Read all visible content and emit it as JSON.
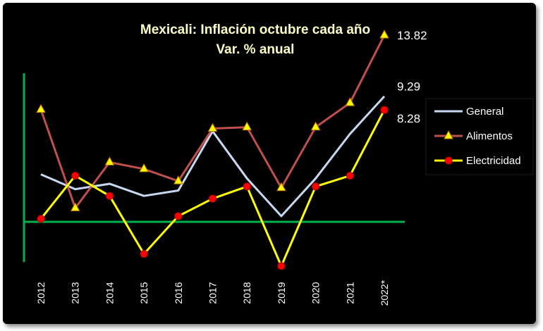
{
  "chart_data": {
    "type": "line",
    "title": "Mexicali: Inflación octubre cada año",
    "subtitle": "Var. % anual",
    "categories": [
      "2012",
      "2013",
      "2014",
      "2015",
      "2016",
      "2017",
      "2018",
      "2019",
      "2020",
      "2021",
      "2022*"
    ],
    "ylim": [
      -3,
      11
    ],
    "grid": false,
    "legend_position": "right",
    "series": [
      {
        "name": "General",
        "color": "#c6d9f1",
        "marker": "none",
        "values": [
          3.5,
          2.4,
          2.8,
          1.9,
          2.3,
          6.7,
          3.2,
          0.4,
          3.2,
          6.5,
          9.29
        ]
      },
      {
        "name": "Alimentos",
        "color": "#c0504d",
        "marker": "triangle",
        "values": [
          8.3,
          1.0,
          4.4,
          3.9,
          3.0,
          6.9,
          7.0,
          2.5,
          7.0,
          8.8,
          13.82
        ]
      },
      {
        "name": "Electricidad",
        "color": "#ffff00",
        "marker": "circle",
        "values": [
          0.2,
          3.4,
          1.9,
          -2.4,
          0.4,
          1.7,
          2.6,
          -3.3,
          2.6,
          3.4,
          8.28
        ]
      }
    ],
    "end_labels": [
      {
        "series": "Alimentos",
        "text": "13.82"
      },
      {
        "series": "General",
        "text": "9.29"
      },
      {
        "series": "Electricidad",
        "text": "8.28"
      }
    ]
  }
}
